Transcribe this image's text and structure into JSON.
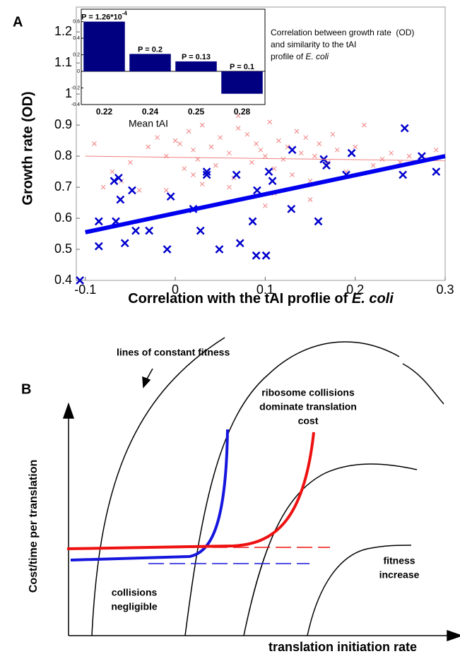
{
  "chart_data": [
    {
      "type": "scatter",
      "panel_label": "A",
      "x_label": [
        "Correlation with the tAI proflie of ",
        "E. coli"
      ],
      "y_label": "Growth rate (OD)",
      "annotation": [
        "Correlation between growth rate  (OD)",
        "and similarity to the tAI",
        "profile of ",
        "E. coli"
      ],
      "xlim": [
        -0.11,
        0.3
      ],
      "ylim": [
        0.4,
        1.28
      ],
      "xticks": [
        -0.1,
        0,
        0.1,
        0.2,
        0.3
      ],
      "yticks": [
        0.4,
        0.5,
        0.6,
        0.7,
        0.8,
        0.9,
        1,
        1.1,
        1.2
      ],
      "series": [
        {
          "type": "scatter",
          "color": "#f08080",
          "x": [
            -0.09,
            -0.08,
            -0.07,
            -0.06,
            -0.05,
            -0.04,
            -0.03,
            -0.02,
            -0.01,
            0,
            0.005,
            0.01,
            0.015,
            0.02,
            0.025,
            0.03,
            0.04,
            0.045,
            0.05,
            0.06,
            0.065,
            0.07,
            0.08,
            0.085,
            0.09,
            0.095,
            0.1,
            0.105,
            0.11,
            0.115,
            0.12,
            0.125,
            0.13,
            0.135,
            0.14,
            0.145,
            0.15,
            0.155,
            0.16,
            0.17,
            0.175,
            0.18,
            0.19,
            0.2,
            0.21,
            0.22,
            0.23,
            0.24,
            0.25,
            0.26,
            0.28,
            0.29,
            -0.01,
            0.03,
            0.07,
            0.11,
            0.15,
            0.02,
            0.06,
            0.1
          ],
          "y": [
            0.84,
            0.7,
            0.75,
            0.72,
            0.78,
            0.69,
            0.83,
            0.86,
            0.8,
            0.85,
            0.84,
            0.76,
            0.88,
            0.82,
            0.79,
            0.9,
            0.83,
            0.77,
            0.86,
            0.81,
            0.73,
            0.89,
            0.87,
            0.78,
            0.84,
            0.82,
            0.8,
            0.91,
            0.76,
            0.85,
            0.79,
            0.83,
            0.74,
            0.88,
            0.81,
            0.86,
            0.72,
            0.8,
            0.84,
            0.78,
            0.87,
            0.82,
            0.75,
            0.83,
            0.9,
            0.77,
            0.79,
            0.81,
            0.78,
            0.8,
            0.79,
            0.82,
            0.69,
            0.71,
            0.93,
            0.68,
            0.66,
            0.74,
            0.7,
            0.64
          ]
        },
        {
          "type": "scatter",
          "color": "#0000cc",
          "x": [
            -0.106,
            -0.085,
            -0.085,
            -0.066,
            -0.068,
            -0.063,
            -0.061,
            -0.056,
            -0.048,
            -0.044,
            -0.029,
            -0.009,
            -0.005,
            0.02,
            0.028,
            0.035,
            0.035,
            0.049,
            0.068,
            0.072,
            0.086,
            0.091,
            0.09,
            0.101,
            0.104,
            0.108,
            0.129,
            0.13,
            0.159,
            0.165,
            0.168,
            0.19,
            0.196,
            0.253,
            0.255,
            0.274,
            0.29
          ],
          "y": [
            0.4,
            0.59,
            0.51,
            0.59,
            0.72,
            0.73,
            0.66,
            0.52,
            0.69,
            0.56,
            0.56,
            0.5,
            0.67,
            0.63,
            0.56,
            0.75,
            0.74,
            0.5,
            0.74,
            0.52,
            0.59,
            0.69,
            0.48,
            0.48,
            0.75,
            0.72,
            0.63,
            0.82,
            0.59,
            0.79,
            0.77,
            0.74,
            0.81,
            0.74,
            0.89,
            0.8,
            0.75
          ]
        },
        {
          "type": "line",
          "color": "#f08080",
          "x": [
            -0.1,
            0.3
          ],
          "y": [
            0.8,
            0.785
          ]
        },
        {
          "type": "line",
          "color": "#0000ee",
          "x": [
            -0.1,
            0.3
          ],
          "y": [
            0.555,
            0.8
          ]
        }
      ]
    },
    {
      "type": "bar",
      "x_label": "Mean tAI",
      "categories": [
        "0.22",
        "0.24",
        "0.25",
        "0.28"
      ],
      "values": [
        0.6,
        0.21,
        0.12,
        -0.27
      ],
      "color": "#000080",
      "annotations": [
        [
          "P = 1.26*10",
          "-4"
        ],
        [
          "P = 0.2"
        ],
        [
          "P = 0.13"
        ],
        [
          "P = 0.1"
        ]
      ],
      "ylim": [
        -0.4,
        0.75
      ],
      "yticks": [
        -0.4,
        -0.2,
        0,
        0.2,
        0.4,
        0.6
      ]
    }
  ],
  "diagram": {
    "panel_label": "B",
    "y_axis_label": "Cost/time per translation",
    "x_axis_label": "translation initiation rate",
    "lines_label": "lines of constant fitness",
    "collisions_label": [
      "ribosome collisions",
      "dominate translation",
      "cost"
    ],
    "fitness_label": [
      "fitness",
      "increase"
    ],
    "negligible_label": [
      "collisions",
      "negligible"
    ]
  }
}
